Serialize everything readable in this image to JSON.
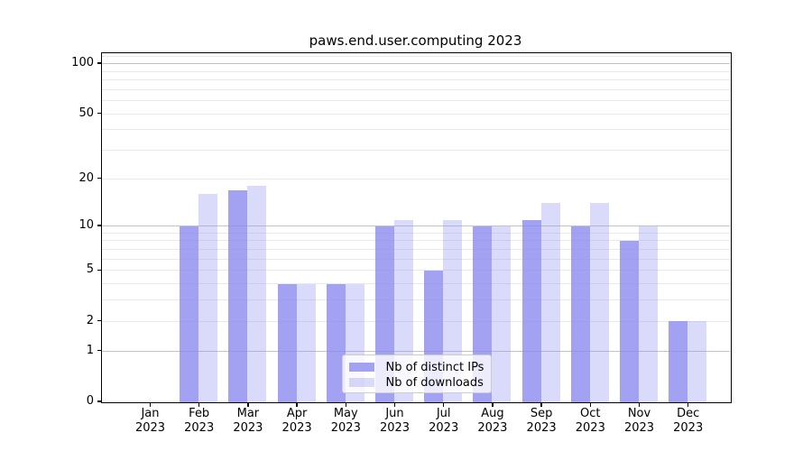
{
  "title": "paws.end.user.computing 2023",
  "chart_data": {
    "type": "bar",
    "title": "paws.end.user.computing 2023",
    "categories": [
      "Jan 2023",
      "Feb 2023",
      "Mar 2023",
      "Apr 2023",
      "May 2023",
      "Jun 2023",
      "Jul 2023",
      "Aug 2023",
      "Sep 2023",
      "Oct 2023",
      "Nov 2023",
      "Dec 2023"
    ],
    "x_ticks": [
      {
        "month": "Jan",
        "year": "2023"
      },
      {
        "month": "Feb",
        "year": "2023"
      },
      {
        "month": "Mar",
        "year": "2023"
      },
      {
        "month": "Apr",
        "year": "2023"
      },
      {
        "month": "May",
        "year": "2023"
      },
      {
        "month": "Jun",
        "year": "2023"
      },
      {
        "month": "Jul",
        "year": "2023"
      },
      {
        "month": "Aug",
        "year": "2023"
      },
      {
        "month": "Sep",
        "year": "2023"
      },
      {
        "month": "Oct",
        "year": "2023"
      },
      {
        "month": "Nov",
        "year": "2023"
      },
      {
        "month": "Dec",
        "year": "2023"
      }
    ],
    "series": [
      {
        "name": "Nb of distinct IPs",
        "color": "rgba(140,139,239,0.8)",
        "values": [
          0,
          10,
          17,
          4,
          4,
          10,
          5,
          10,
          11,
          10,
          8,
          2
        ]
      },
      {
        "name": "Nb of downloads",
        "color": "rgba(149,148,240,0.35)",
        "values": [
          0,
          16,
          18,
          4,
          4,
          11,
          11,
          10,
          14,
          14,
          10,
          2
        ]
      }
    ],
    "yscale": "log1p",
    "ylim": [
      0,
      115
    ],
    "y_ticks": [
      {
        "label": "100",
        "value": 100
      },
      {
        "label": "50",
        "value": 50
      },
      {
        "label": "20",
        "value": 20
      },
      {
        "label": "10",
        "value": 10
      },
      {
        "label": "5",
        "value": 5
      },
      {
        "label": "2",
        "value": 2
      },
      {
        "label": "1",
        "value": 1
      },
      {
        "label": "0",
        "value": 0
      }
    ],
    "major_gridlines": [
      1,
      10,
      100
    ],
    "minor_gridlines": [
      2,
      3,
      4,
      5,
      6,
      7,
      8,
      9,
      20,
      30,
      40,
      50,
      60,
      70,
      80,
      90,
      110
    ],
    "grid": true,
    "legend_position": "lower center",
    "grid_color_major": "#c3c3c3",
    "grid_color_minor": "#e9e9e9",
    "xlabel": "",
    "ylabel": ""
  }
}
